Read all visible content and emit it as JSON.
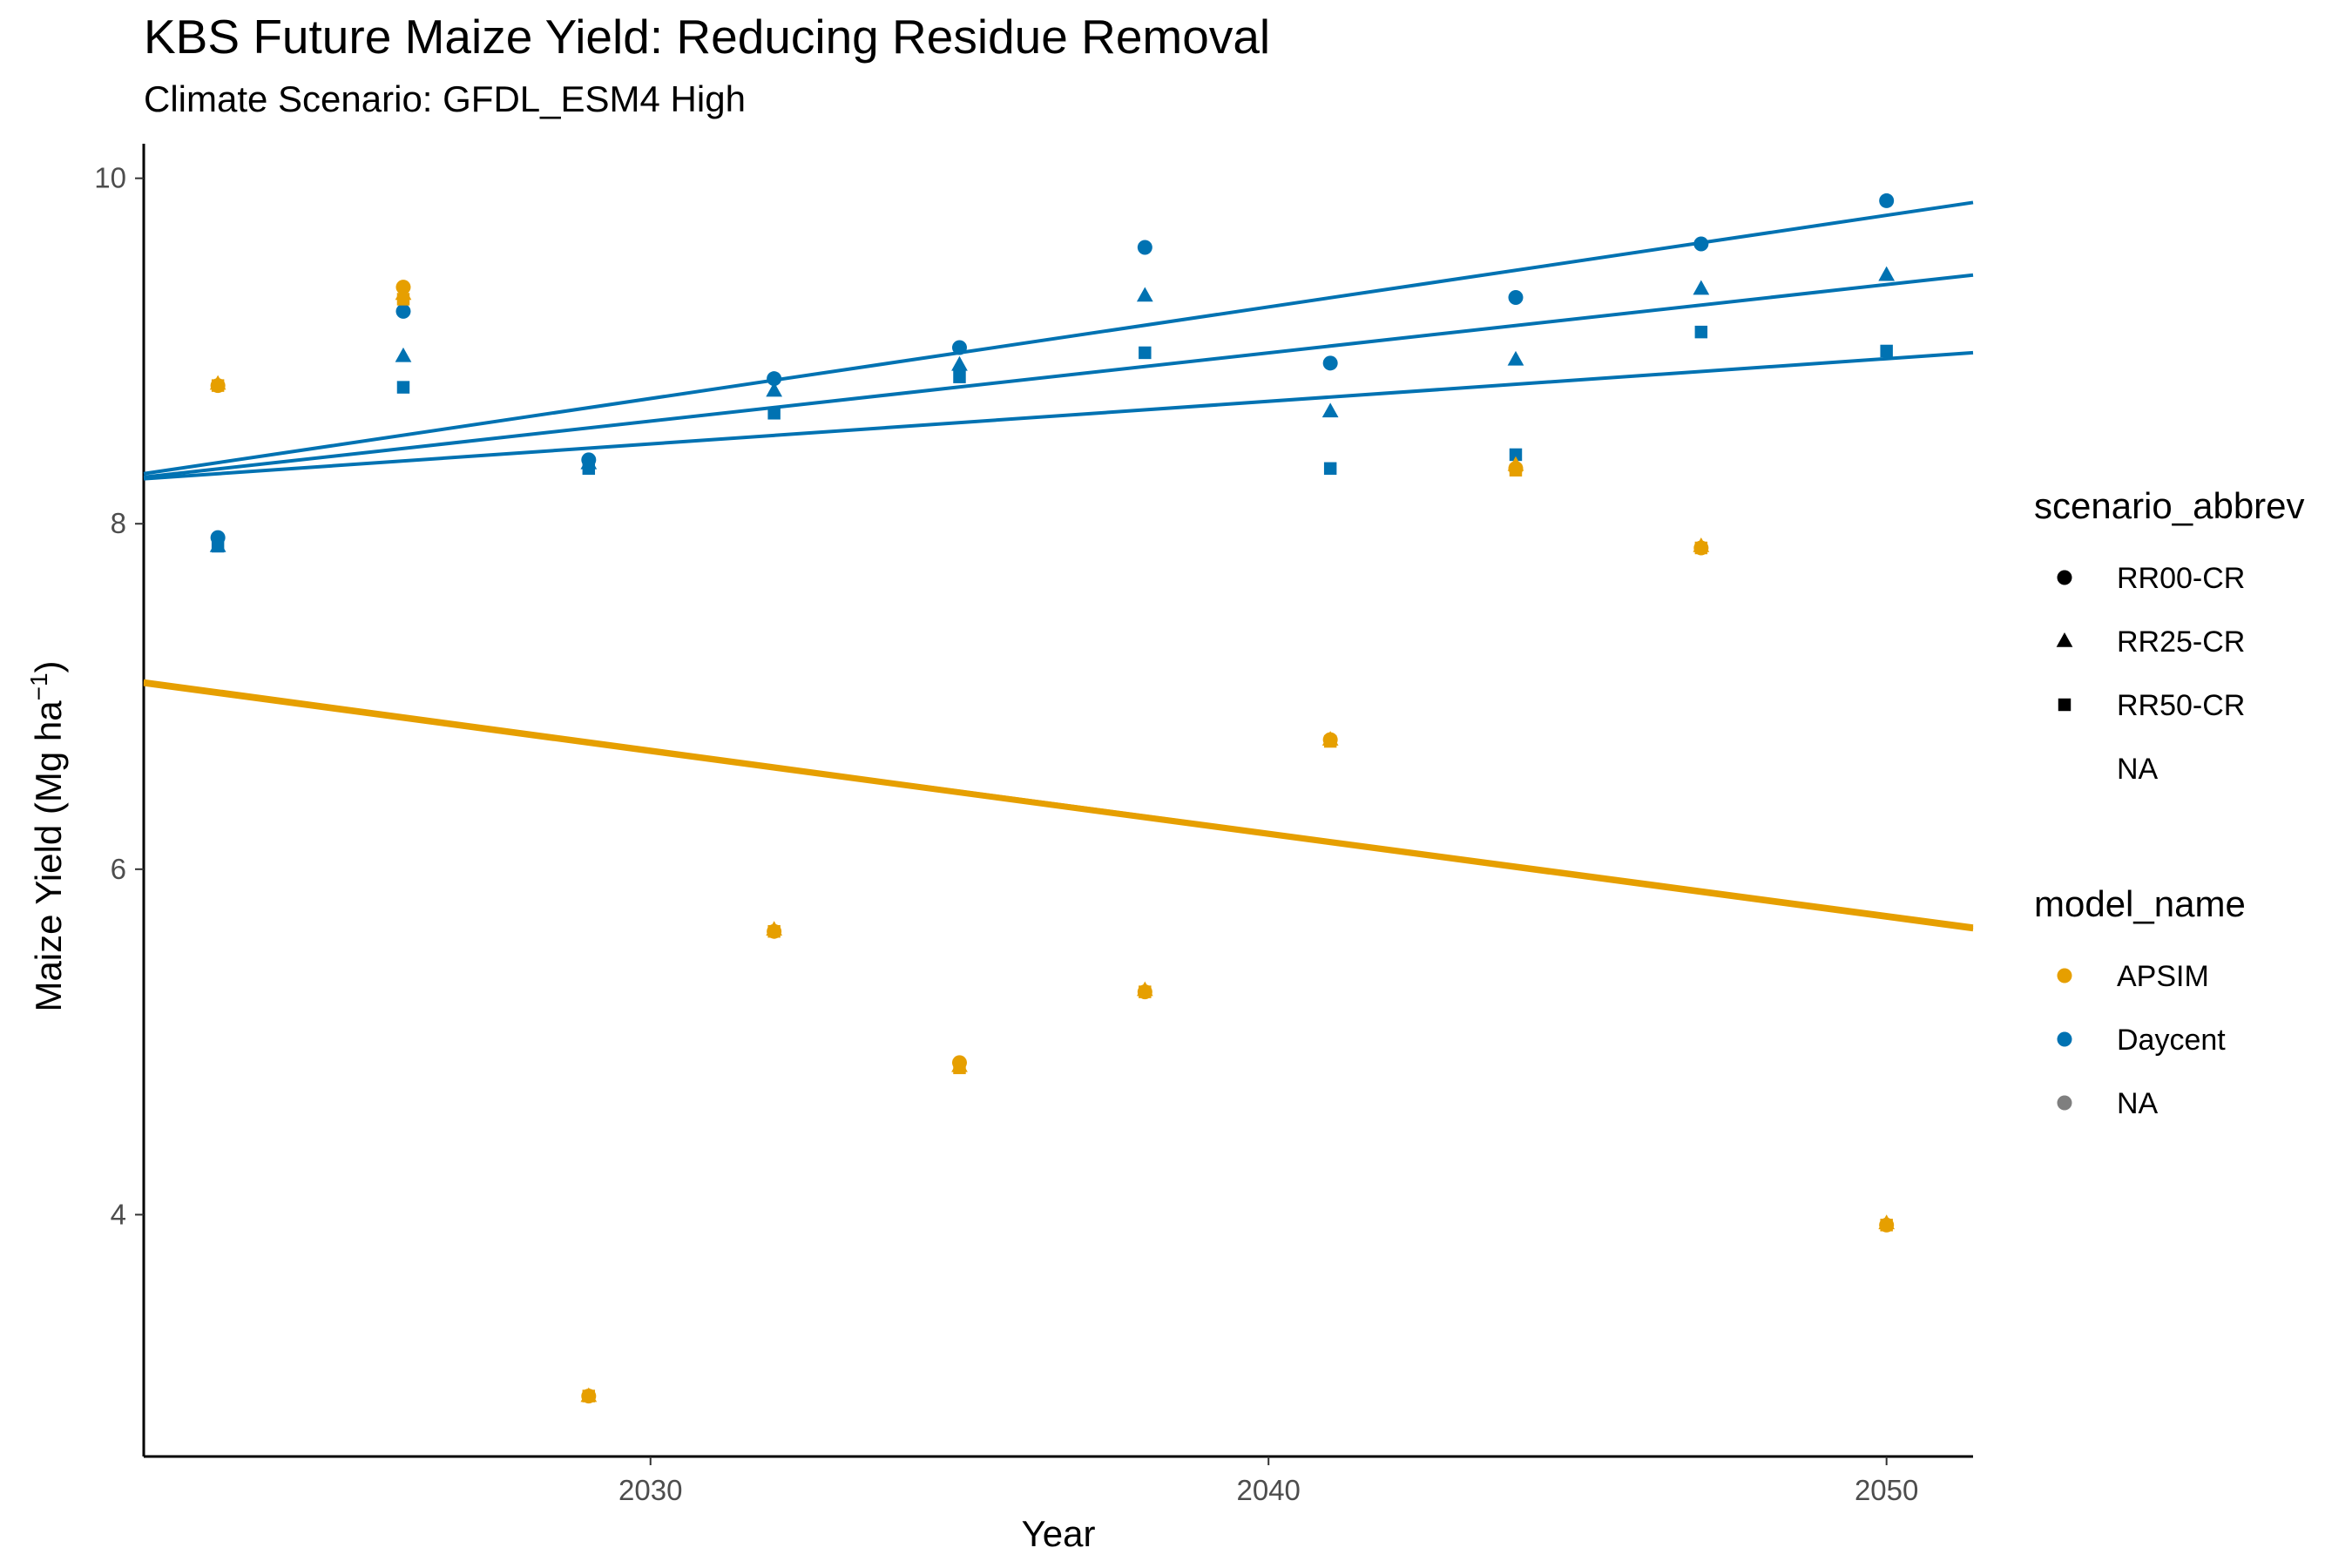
{
  "chart_data": {
    "type": "scatter",
    "title": "KBS Future Maize Yield: Reducing Residue Removal",
    "subtitle": "Climate Scenario: GFDL_ESM4 High",
    "xlabel": "Year",
    "ylabel_main": "Maize Yield (Mg ha",
    "ylabel_sup": "−1",
    "ylabel_close": ")",
    "xlim": [
      2021.8,
      2051.4
    ],
    "ylim": [
      2.6,
      10.2
    ],
    "x_ticks": [
      2030,
      2040,
      2050
    ],
    "y_ticks": [
      4,
      6,
      8,
      10
    ],
    "grid": false,
    "legend_position": "right",
    "legends": [
      {
        "title": "scenario_abbrev",
        "entries": [
          {
            "label": "RR00-CR",
            "shape": "circle",
            "color": "#000000"
          },
          {
            "label": "RR25-CR",
            "shape": "triangle",
            "color": "#000000"
          },
          {
            "label": "RR50-CR",
            "shape": "square",
            "color": "#000000"
          },
          {
            "label": "NA",
            "shape": "none",
            "color": "#000000"
          }
        ]
      },
      {
        "title": "model_name",
        "entries": [
          {
            "label": "APSIM",
            "shape": "circle",
            "color": "#E69F00"
          },
          {
            "label": "Daycent",
            "shape": "circle",
            "color": "#0072B2"
          },
          {
            "label": "NA",
            "shape": "circle",
            "color": "#7F7F7F"
          }
        ]
      }
    ],
    "series": [
      {
        "model": "Daycent",
        "scenario": "RR00-CR",
        "color": "#0072B2",
        "shape": "circle",
        "x": [
          2023,
          2026,
          2029,
          2032,
          2035,
          2038,
          2041,
          2044,
          2047,
          2050
        ],
        "y": [
          7.92,
          9.23,
          8.37,
          8.84,
          9.02,
          9.6,
          8.93,
          9.31,
          9.62,
          9.87
        ]
      },
      {
        "model": "Daycent",
        "scenario": "RR25-CR",
        "color": "#0072B2",
        "shape": "triangle",
        "x": [
          2023,
          2026,
          2029,
          2032,
          2035,
          2038,
          2041,
          2044,
          2047,
          2050
        ],
        "y": [
          7.87,
          8.97,
          8.35,
          8.77,
          8.92,
          9.32,
          8.65,
          8.95,
          9.36,
          9.44
        ]
      },
      {
        "model": "Daycent",
        "scenario": "RR50-CR",
        "color": "#0072B2",
        "shape": "square",
        "x": [
          2023,
          2026,
          2029,
          2032,
          2035,
          2038,
          2041,
          2044,
          2047,
          2050
        ],
        "y": [
          7.87,
          8.79,
          8.32,
          8.64,
          8.85,
          8.99,
          8.32,
          8.4,
          9.11,
          9.0
        ]
      },
      {
        "model": "APSIM",
        "scenario": "RR00-CR",
        "color": "#E69F00",
        "shape": "circle",
        "x": [
          2023,
          2026,
          2029,
          2032,
          2035,
          2038,
          2041,
          2044,
          2047,
          2050
        ],
        "y": [
          8.8,
          9.37,
          2.95,
          5.64,
          4.88,
          5.29,
          6.75,
          8.32,
          7.86,
          3.94
        ]
      },
      {
        "model": "APSIM",
        "scenario": "RR25-CR",
        "color": "#E69F00",
        "shape": "triangle",
        "x": [
          2023,
          2026,
          2029,
          2032,
          2035,
          2038,
          2041,
          2044,
          2047,
          2050
        ],
        "y": [
          8.81,
          9.33,
          2.95,
          5.65,
          4.86,
          5.3,
          6.75,
          8.34,
          7.87,
          3.95
        ]
      },
      {
        "model": "APSIM",
        "scenario": "RR50-CR",
        "color": "#E69F00",
        "shape": "square",
        "x": [
          2023,
          2026,
          2029,
          2032,
          2035,
          2038,
          2041,
          2044,
          2047,
          2050
        ],
        "y": [
          8.8,
          9.3,
          2.95,
          5.64,
          4.85,
          5.29,
          6.74,
          8.31,
          7.86,
          3.94
        ]
      }
    ],
    "trend_lines": [
      {
        "model": "Daycent",
        "scenario": "RR00-CR",
        "color": "#0072B2",
        "x": [
          2021.8,
          2051.4
        ],
        "y": [
          8.29,
          9.86
        ]
      },
      {
        "model": "Daycent",
        "scenario": "RR25-CR",
        "color": "#0072B2",
        "x": [
          2021.8,
          2051.4
        ],
        "y": [
          8.27,
          9.44
        ]
      },
      {
        "model": "Daycent",
        "scenario": "RR50-CR",
        "color": "#0072B2",
        "x": [
          2021.8,
          2051.4
        ],
        "y": [
          8.26,
          8.99
        ]
      },
      {
        "model": "APSIM",
        "scenario": "RR00-CR",
        "color": "#E69F00",
        "x": [
          2021.8,
          2051.4
        ],
        "y": [
          7.09,
          5.66
        ]
      },
      {
        "model": "APSIM",
        "scenario": "RR25-CR",
        "color": "#E69F00",
        "x": [
          2021.8,
          2051.4
        ],
        "y": [
          7.08,
          5.67
        ]
      },
      {
        "model": "APSIM",
        "scenario": "RR50-CR",
        "color": "#E69F00",
        "x": [
          2021.8,
          2051.4
        ],
        "y": [
          7.07,
          5.65
        ]
      }
    ]
  }
}
